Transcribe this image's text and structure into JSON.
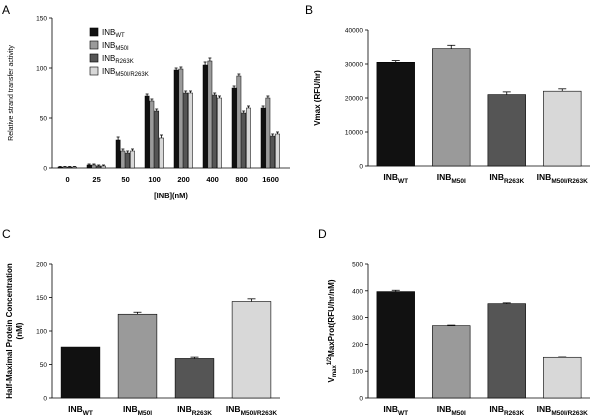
{
  "colors": {
    "wt": "#111111",
    "m50i": "#9a9a9a",
    "r263k": "#555555",
    "m50i_r263k": "#d8d8d8"
  },
  "legend": [
    {
      "base": "INB",
      "sub": "WT",
      "color": "#111111"
    },
    {
      "base": "INB",
      "sub": "M50I",
      "color": "#9a9a9a"
    },
    {
      "base": "INB",
      "sub": "R263K",
      "color": "#555555"
    },
    {
      "base": "INB",
      "sub": "M50I/R263K",
      "color": "#d8d8d8"
    }
  ],
  "chart_data": [
    {
      "panel": "A",
      "type": "bar",
      "categories": [
        "0",
        "25",
        "50",
        "100",
        "200",
        "400",
        "800",
        "1600"
      ],
      "series": [
        {
          "name": "INB_WT",
          "values": [
            1,
            3,
            28,
            72,
            98,
            103,
            80,
            60
          ],
          "errors": [
            0.5,
            1,
            3,
            2,
            2,
            3,
            2,
            2
          ]
        },
        {
          "name": "INB_M50I",
          "values": [
            1,
            3,
            17,
            67,
            99,
            107,
            92,
            70
          ],
          "errors": [
            0.5,
            1,
            2,
            2,
            2,
            3,
            2,
            2
          ]
        },
        {
          "name": "INB_R263K",
          "values": [
            1,
            2,
            15,
            57,
            75,
            73,
            55,
            32
          ],
          "errors": [
            0.5,
            1,
            2,
            2,
            2,
            2,
            2,
            2
          ]
        },
        {
          "name": "INB_M50I/R263K",
          "values": [
            1,
            2,
            17,
            30,
            75,
            70,
            60,
            34
          ],
          "errors": [
            0.5,
            1,
            2,
            3,
            2,
            2,
            2,
            2
          ]
        }
      ],
      "xlabel": "[INB](nM)",
      "ylabel": "Relative strand transfer activity",
      "ylim": [
        0,
        150
      ],
      "yticks": [
        "0",
        "50",
        "100",
        "150"
      ]
    },
    {
      "panel": "B",
      "type": "bar",
      "categories": [
        {
          "base": "INB",
          "sub": "WT"
        },
        {
          "base": "INB",
          "sub": "M50I"
        },
        {
          "base": "INB",
          "sub": "R263K"
        },
        {
          "base": "INB",
          "sub": "M50I/R263K"
        }
      ],
      "values": [
        30500,
        34500,
        21000,
        22000
      ],
      "errors": [
        500,
        1000,
        800,
        700
      ],
      "ylabel": "Vmax (RFU/hr)",
      "ylim": [
        0,
        40000
      ],
      "yticks": [
        "0",
        "10000",
        "20000",
        "30000",
        "40000"
      ]
    },
    {
      "panel": "C",
      "type": "bar",
      "categories": [
        {
          "base": "INB",
          "sub": "WT"
        },
        {
          "base": "INB",
          "sub": "M50I"
        },
        {
          "base": "INB",
          "sub": "R263K"
        },
        {
          "base": "INB",
          "sub": "M50I/R263K"
        }
      ],
      "values": [
        76,
        125,
        59,
        144
      ],
      "errors": [
        0,
        3,
        2,
        4
      ],
      "ylabel": "Half-Maximal Protein Concentration (nM)",
      "ylim": [
        0,
        200
      ],
      "yticks": [
        "0",
        "50",
        "100",
        "150",
        "200"
      ]
    },
    {
      "panel": "D",
      "type": "bar",
      "categories": [
        {
          "base": "INB",
          "sub": "WT"
        },
        {
          "base": "INB",
          "sub": "M50I"
        },
        {
          "base": "INB",
          "sub": "R263K"
        },
        {
          "base": "INB",
          "sub": "M50I/R263K"
        }
      ],
      "values": [
        397,
        270,
        352,
        152
      ],
      "errors": [
        5,
        2,
        3,
        1
      ],
      "ylabel_parts": {
        "v": "V",
        "max_sub": "max",
        "half_sup": "1/2",
        "rest": "MaxProt(RFU/hr/nM)"
      },
      "ylim": [
        0,
        500
      ],
      "yticks": [
        "0",
        "100",
        "200",
        "300",
        "400",
        "500"
      ]
    }
  ]
}
